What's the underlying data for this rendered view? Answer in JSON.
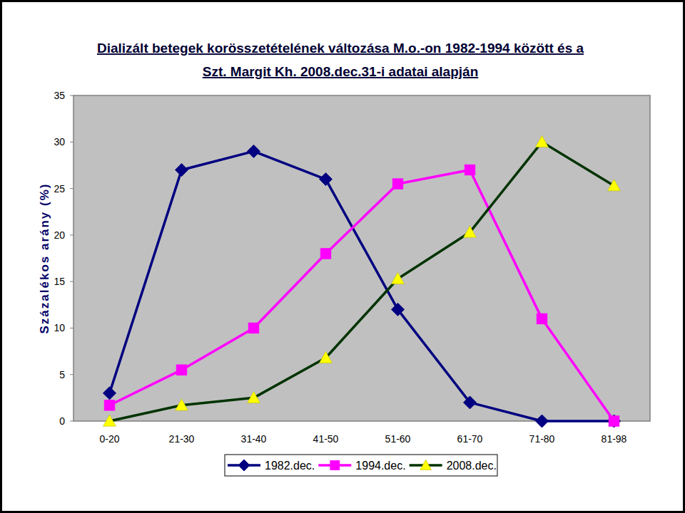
{
  "chart_data": {
    "type": "line",
    "title": [
      "Dializált betegek korösszetételének változása M.o.-on 1982-1994 között és a",
      "Szt. Margit Kh. 2008.dec.31-i adatai alapján"
    ],
    "y_label": "Százalékos arány (%)",
    "categories": [
      "0-20",
      "21-30",
      "31-40",
      "41-50",
      "51-60",
      "61-70",
      "71-80",
      "81-98"
    ],
    "series": [
      {
        "name": "1982.dec.",
        "color": "#000080",
        "marker": "diamond",
        "values": [
          3,
          27,
          29,
          26,
          12,
          2,
          0,
          0
        ]
      },
      {
        "name": "1994.dec.",
        "color": "#ff00ff",
        "marker": "square",
        "values": [
          1.7,
          5.5,
          10,
          18,
          25.5,
          27,
          11,
          0
        ]
      },
      {
        "name": "2008.dec.",
        "color": "#003300",
        "marker": "triangle",
        "values": [
          0,
          1.7,
          2.5,
          6.8,
          15.3,
          20.3,
          30,
          25.3
        ]
      }
    ],
    "ylim": [
      0,
      35
    ],
    "yticks": [
      0,
      5,
      10,
      15,
      20,
      25,
      30,
      35
    ],
    "grid": false,
    "legend": "bottom"
  }
}
